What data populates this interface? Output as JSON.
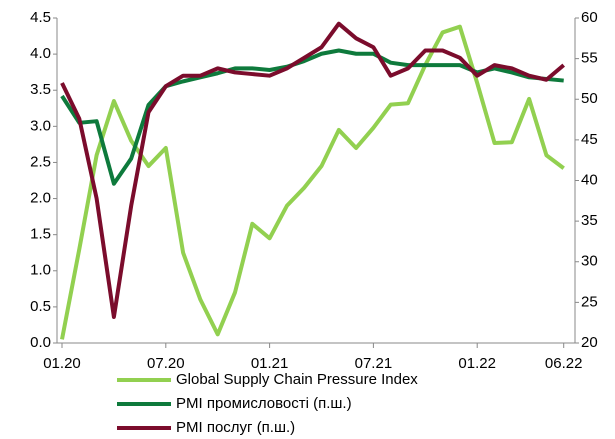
{
  "chart_data": {
    "type": "line",
    "categories": [
      "01.20",
      null,
      null,
      null,
      null,
      null,
      "07.20",
      null,
      null,
      null,
      null,
      null,
      "01.21",
      null,
      null,
      null,
      null,
      null,
      "07.21",
      null,
      null,
      null,
      null,
      null,
      "01.22",
      null,
      null,
      null,
      null,
      "06.22"
    ],
    "series": [
      {
        "name": "Global Supply Chain Pressure Index",
        "color": "#92d050",
        "axis": "y",
        "values": [
          0.05,
          1.3,
          2.6,
          3.35,
          2.8,
          2.45,
          2.7,
          1.25,
          0.6,
          0.12,
          0.7,
          1.65,
          1.45,
          1.9,
          2.15,
          2.45,
          2.95,
          2.7,
          2.98,
          3.3,
          3.32,
          3.85,
          4.3,
          4.38,
          3.6,
          2.77,
          2.78,
          3.38,
          2.6,
          2.42
        ]
      },
      {
        "name": "PMI промисловості (п.ш.)",
        "color": "#0e7a3c",
        "axis": "y2",
        "values": [
          50.4,
          47.1,
          47.3,
          39.6,
          42.7,
          49.3,
          51.6,
          52.2,
          52.7,
          53.2,
          53.8,
          53.8,
          53.6,
          54.0,
          54.7,
          55.6,
          56.0,
          55.6,
          55.6,
          54.5,
          54.2,
          54.2,
          54.2,
          54.2,
          53.3,
          53.8,
          53.3,
          52.7,
          52.5,
          52.3
        ]
      },
      {
        "name": "PMI послуг (п.ш.)",
        "color": "#7b0c2c",
        "axis": "y2",
        "values": [
          52.0,
          47.6,
          37.8,
          23.2,
          36.9,
          48.4,
          51.6,
          52.9,
          52.9,
          53.8,
          53.3,
          53.1,
          52.9,
          53.8,
          55.1,
          56.4,
          59.3,
          57.5,
          56.4,
          52.9,
          53.8,
          56.0,
          56.0,
          55.1,
          52.9,
          54.2,
          53.8,
          52.9,
          52.4,
          54.2
        ]
      }
    ],
    "ylim": [
      0,
      4.5
    ],
    "yticks": [
      {
        "value": 0,
        "label": "0.0"
      },
      0.5,
      {
        "value": 1,
        "label": "1.0"
      },
      1.5,
      {
        "value": 2,
        "label": "2.0"
      },
      2.5,
      {
        "value": 3,
        "label": "3.0"
      },
      3.5,
      {
        "value": 4,
        "label": "4.0"
      },
      4.5
    ],
    "y2lim": [
      20,
      60
    ],
    "y2ticks": [
      20,
      25,
      30,
      35,
      40,
      45,
      50,
      55,
      60
    ],
    "grid": false
  }
}
